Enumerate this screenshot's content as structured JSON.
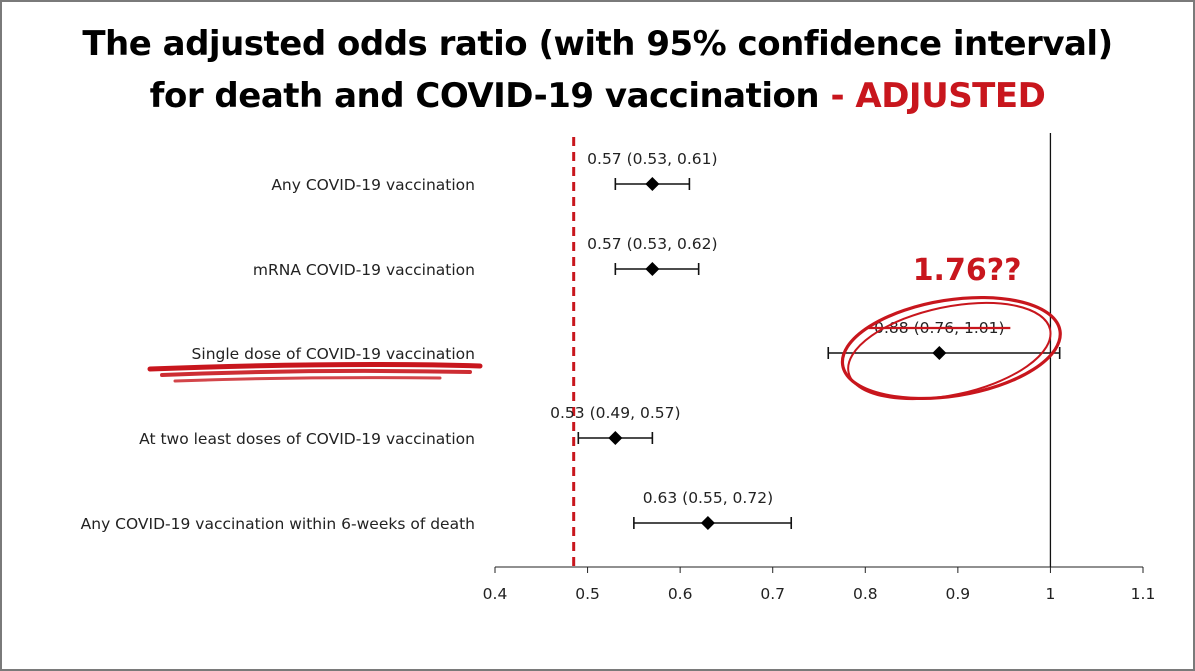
{
  "title": {
    "line1": "The adjusted odds ratio (with 95% confidence interval)",
    "line2": "for death and COVID-19 vaccination",
    "suffix": " - ADJUSTED"
  },
  "annotation": "1.76??",
  "colors": {
    "accent": "#c8161d",
    "marker": "#000000",
    "text": "#222222"
  },
  "chart_data": {
    "type": "scatter",
    "subtype": "forest-plot",
    "categories": [
      "Any COVID-19 vaccination",
      "mRNA COVID-19 vaccination",
      "Single dose of COVID-19 vaccination",
      "At two least doses of COVID-19 vaccination",
      "Any COVID-19 vaccination within 6-weeks of death"
    ],
    "series": [
      {
        "estimates": [
          0.57,
          0.57,
          0.88,
          0.53,
          0.63
        ],
        "lower": [
          0.53,
          0.53,
          0.76,
          0.49,
          0.55
        ],
        "upper": [
          0.61,
          0.62,
          1.01,
          0.57,
          0.72
        ]
      }
    ],
    "data_labels": [
      "0.57 (0.53, 0.61)",
      "0.57 (0.53, 0.62)",
      "0.88 (0.76, 1.01)",
      "0.53 (0.49, 0.57)",
      "0.63 (0.55, 0.72)"
    ],
    "xlim": [
      0.4,
      1.1
    ],
    "xticks": [
      "0.4",
      "0.5",
      "0.6",
      "0.7",
      "0.8",
      "0.9",
      "1",
      "1.1"
    ],
    "reference_line": 1,
    "dashed_reference_line": 0.485,
    "highlighted_category": "Single dose of COVID-19 vaccination",
    "struck_label": "0.88 (0.76, 1.01)",
    "grid": false
  }
}
